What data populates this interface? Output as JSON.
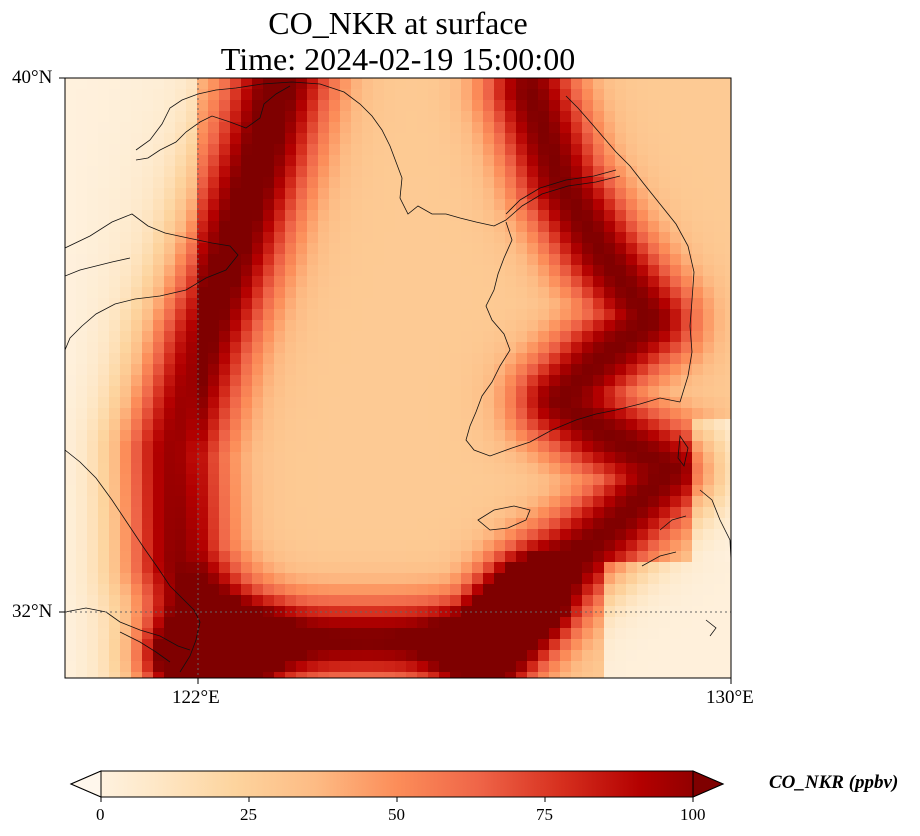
{
  "title": {
    "line1": "CO_NKR at surface",
    "line2": "Time: 2024-02-19 15:00:00"
  },
  "map": {
    "variable": "CO_NKR",
    "level": "surface",
    "time": "2024-02-19 15:00:00",
    "lat_ticks": [
      "40°N",
      "32°N"
    ],
    "lon_ticks": [
      "122°E",
      "130°E"
    ],
    "gridlines": "dotted",
    "colormap": "OrRd",
    "colormap_stops": [
      "#fff7ec",
      "#fee8c8",
      "#fdd49e",
      "#fdbb84",
      "#fc8d59",
      "#ef6548",
      "#d7301f",
      "#b30000",
      "#7f0000"
    ]
  },
  "colorbar": {
    "label": "CO_NKR (ppbv)",
    "ticks": [
      "0",
      "25",
      "50",
      "75",
      "100"
    ],
    "vmin": 0,
    "vmax": 100,
    "extend": "both"
  }
}
